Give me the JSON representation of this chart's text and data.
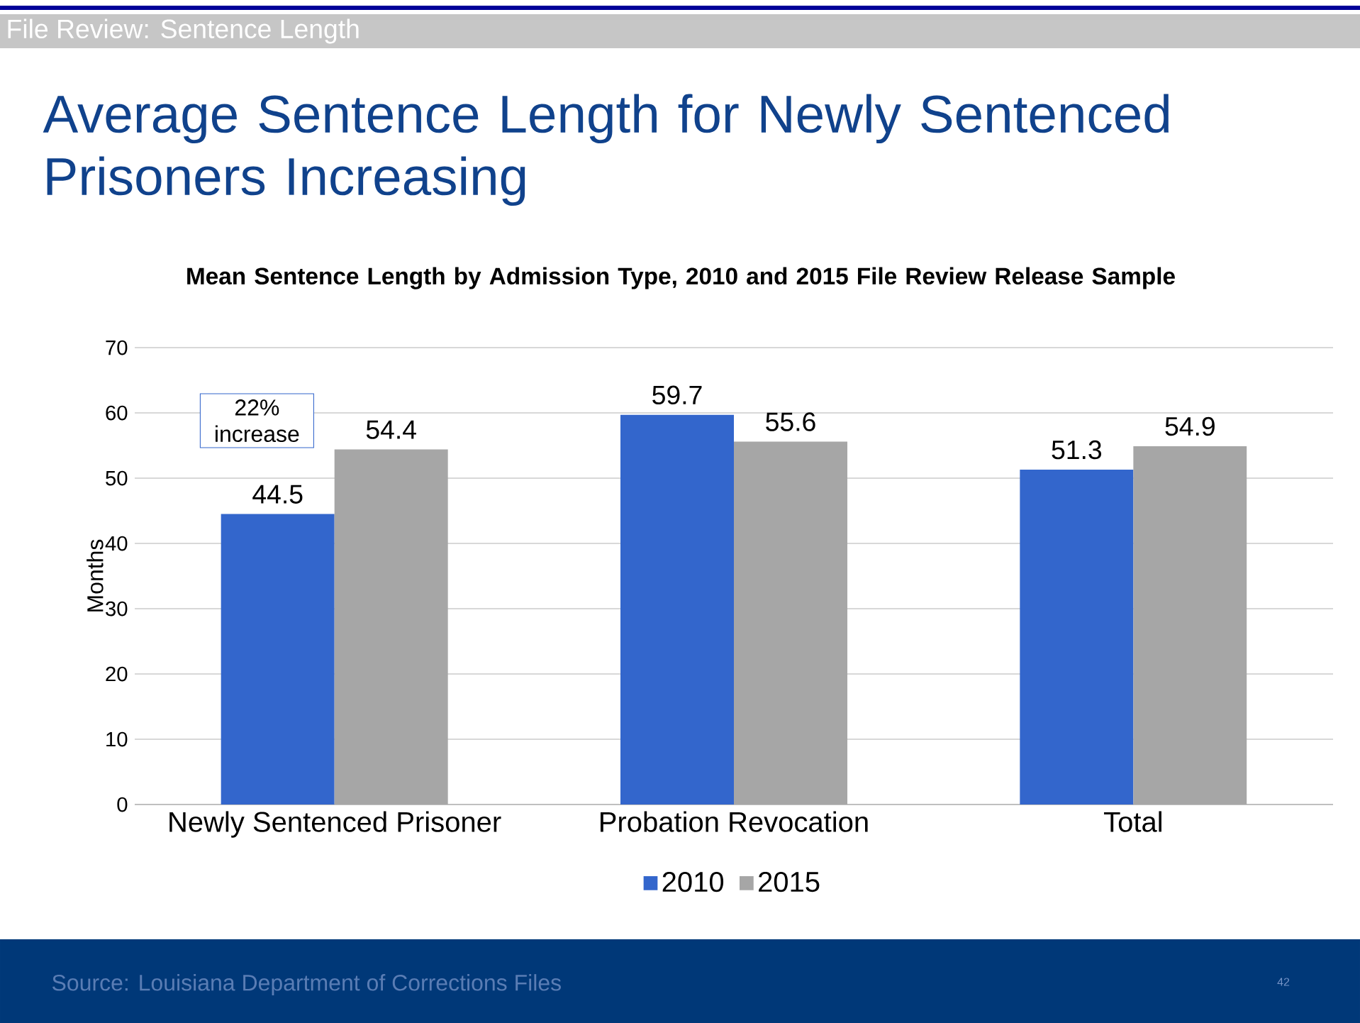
{
  "chart_data": {
    "type": "bar",
    "title": "Average Sentence Length for Newly Sentenced Prisoners Increasing",
    "subtitle": "Mean Sentence Length by Admission Type, 2010 and 2015 File Review Release Sample",
    "ylabel": "Months",
    "categories": [
      "Newly Sentenced Prisoner",
      "Probation Revocation",
      "Total"
    ],
    "series": [
      {
        "name": "2010",
        "color": "#3366cc",
        "values": [
          44.5,
          59.7,
          51.3
        ]
      },
      {
        "name": "2015",
        "color": "#a6a6a6",
        "values": [
          54.4,
          55.6,
          54.9
        ]
      }
    ],
    "ylim": [
      0,
      70
    ],
    "yticks": [
      0,
      10,
      20,
      30,
      40,
      50,
      60,
      70
    ],
    "grid": "y",
    "legend": "bottom",
    "data_labels": true,
    "annotations": [
      "File Review: Sentence Length",
      "22% increase",
      "Source: Louisiana Department of Corrections Files",
      "42"
    ]
  }
}
